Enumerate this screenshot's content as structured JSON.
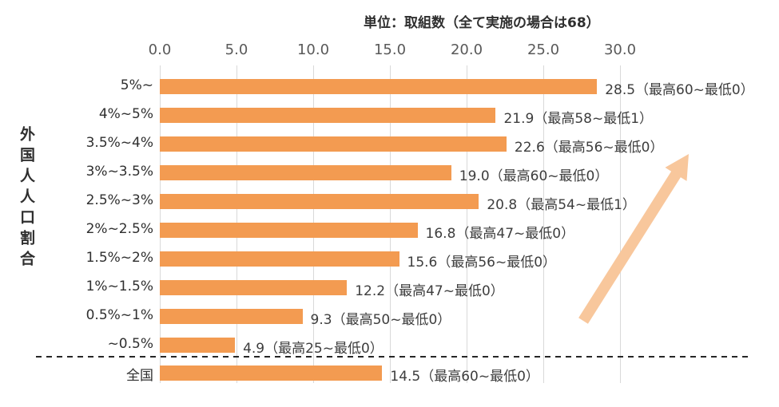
{
  "chart_data": {
    "type": "bar",
    "orientation": "horizontal",
    "title": "単位：取組数（全て実施の場合は68）",
    "ylabel": "外国人人口割合",
    "xlabel": "",
    "xlim": [
      0,
      30
    ],
    "x_ticks": [
      "0.0",
      "5.0",
      "10.0",
      "15.0",
      "20.0",
      "25.0",
      "30.0"
    ],
    "grid": "vertical-on",
    "legend": "none",
    "bar_color": "#F39B51",
    "arrow_color": "#F8C79C",
    "gridline_color": "#d9d9d9",
    "rows": [
      {
        "category": "5%~",
        "value": 28.5,
        "label": "28.5（最高60~最低0）"
      },
      {
        "category": "4%~5%",
        "value": 21.9,
        "label": "21.9（最高58~最低1）"
      },
      {
        "category": "3.5%~4%",
        "value": 22.6,
        "label": "22.6（最高56~最低0）"
      },
      {
        "category": "3%~3.5%",
        "value": 19.0,
        "label": "19.0（最高60~最低0）"
      },
      {
        "category": "2.5%~3%",
        "value": 20.8,
        "label": "20.8（最高54~最低1）"
      },
      {
        "category": "2%~2.5%",
        "value": 16.8,
        "label": "16.8（最高47~最低0）"
      },
      {
        "category": "1.5%~2%",
        "value": 15.6,
        "label": "15.6（最高56~最低0）"
      },
      {
        "category": "1%~1.5%",
        "value": 12.2,
        "label": "12.2（最高47~最低0）"
      },
      {
        "category": "0.5%~1%",
        "value": 9.3,
        "label": "9.3（最高50~最低0）"
      },
      {
        "category": "~0.5%",
        "value": 4.9,
        "label": "4.9（最高25~最低0）"
      },
      {
        "category": "全国",
        "value": 14.5,
        "label": "14.5（最高60~最低0）"
      }
    ],
    "separator_after_row_index": 9,
    "annotations": [
      "upward-trend-arrow"
    ]
  }
}
